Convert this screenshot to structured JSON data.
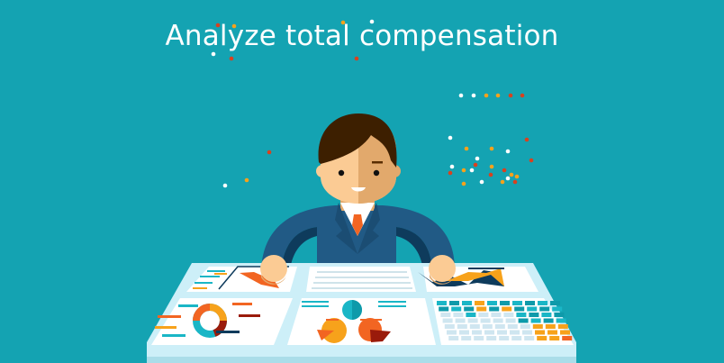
{
  "header": {
    "title": "Analyze total compensation"
  },
  "colors": {
    "background": "#14a3b2",
    "suit": "#215a85",
    "suit_dark": "#0e3b5c",
    "hair": "#3d1f00",
    "skin": "#fbcb94",
    "skin_shade": "#e2a96c",
    "tie": "#f26522",
    "orange": "#f7a21b",
    "red": "#d9411e",
    "teal": "#1ab6c6",
    "desk": "#cdeff8"
  },
  "illustration": {
    "subject": "businessman-at-dashboard-desk-icon"
  }
}
